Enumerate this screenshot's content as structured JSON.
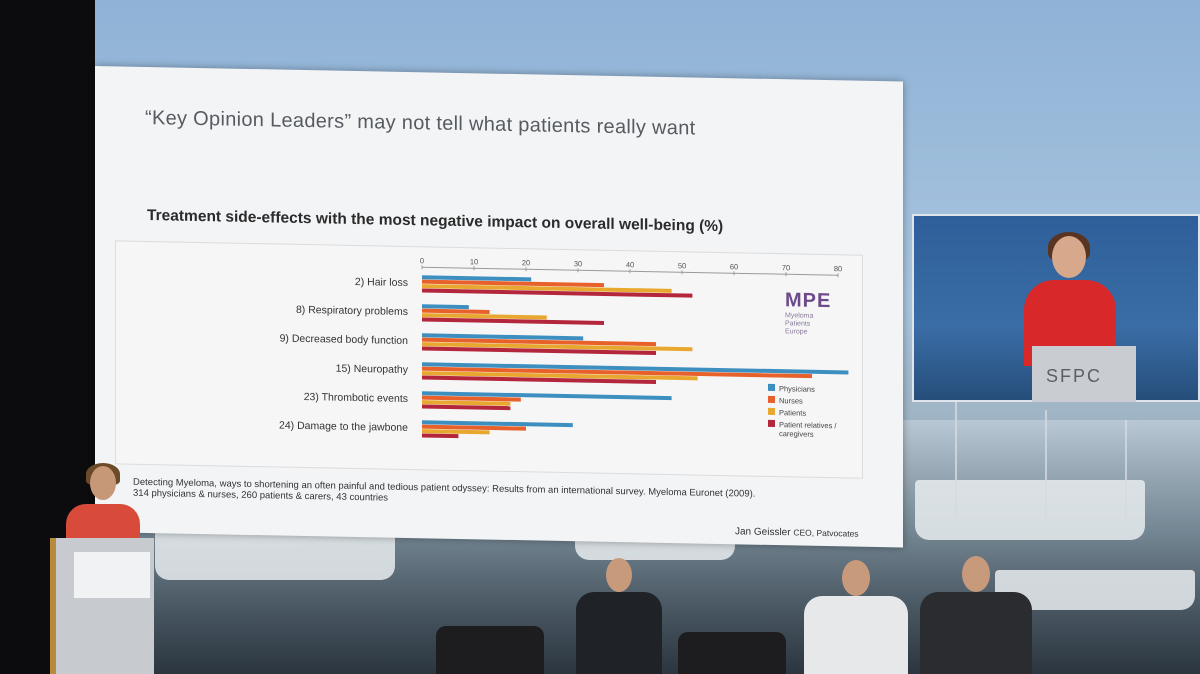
{
  "slide": {
    "headline": "“Key Opinion Leaders” may not tell what patients really want",
    "chart_title": "Treatment side-effects with the most negative impact on overall well-being (%)",
    "logo": {
      "mark": "MPE",
      "sub": [
        "Myeloma",
        "Patients",
        "Europe"
      ]
    },
    "source": [
      "Detecting Myeloma, ways to shortening an often painful and tedious patient odyssey: Results from an international survey. Myeloma Euronet (2009).",
      "314 physicians & nurses, 260 patients & carers, 43 countries"
    ],
    "author": "Jan Geissler",
    "author_org": "CEO, Patvocates"
  },
  "inset": {
    "label": "SFPC"
  },
  "chart_data": {
    "type": "bar",
    "orientation": "horizontal",
    "title": "Treatment side-effects with the most negative impact on overall well-being (%)",
    "xlim": [
      0,
      80
    ],
    "ticks": [
      0,
      10,
      20,
      30,
      40,
      50,
      60,
      70,
      80
    ],
    "categories": [
      "2) Hair loss",
      "8) Respiratory problems",
      "9) Decreased body function",
      "15) Neuropathy",
      "23) Thrombotic events",
      "24) Damage to the jawbone"
    ],
    "series": [
      {
        "name": "Physicians",
        "color": "#3d8fbf",
        "values": [
          21,
          9,
          31,
          82,
          48,
          29
        ]
      },
      {
        "name": "Nurses",
        "color": "#e8602a",
        "values": [
          35,
          13,
          45,
          75,
          19,
          20
        ]
      },
      {
        "name": "Patients",
        "color": "#e8a830",
        "values": [
          48,
          24,
          52,
          53,
          17,
          13
        ]
      },
      {
        "name": "Patient relatives / caregivers",
        "color": "#b3263b",
        "values": [
          52,
          35,
          45,
          45,
          17,
          7
        ]
      }
    ],
    "legend": "right",
    "grid": false
  }
}
